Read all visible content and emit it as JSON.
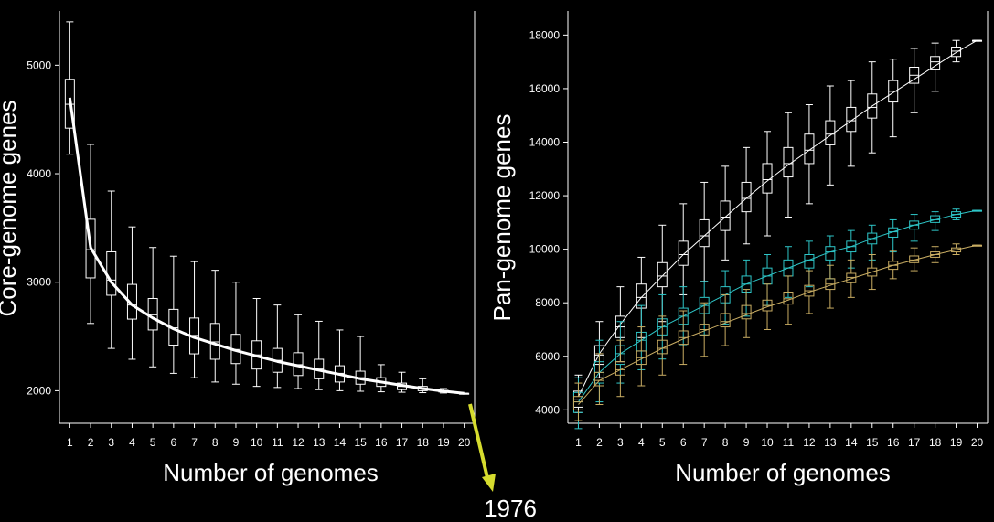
{
  "chart_data": [
    {
      "type": "box",
      "title": "",
      "xlabel": "Number of genomes",
      "ylabel": "Core-genome genes",
      "x": [
        1,
        2,
        3,
        4,
        5,
        6,
        7,
        8,
        9,
        10,
        11,
        12,
        13,
        14,
        15,
        16,
        17,
        18,
        19,
        20
      ],
      "xlim": [
        0.5,
        20.5
      ],
      "ylim": [
        1700,
        5500
      ],
      "yticks": [
        2000,
        3000,
        4000,
        5000
      ],
      "grid": false,
      "series": [
        {
          "color": "#ffffff",
          "boxes": [
            {
              "x": 1,
              "min": 4180,
              "q1": 4420,
              "median": 4640,
              "q3": 4870,
              "max": 5400
            },
            {
              "x": 2,
              "min": 2620,
              "q1": 3040,
              "median": 3300,
              "q3": 3580,
              "max": 4270
            },
            {
              "x": 3,
              "min": 2390,
              "q1": 2880,
              "median": 3020,
              "q3": 3280,
              "max": 3840
            },
            {
              "x": 4,
              "min": 2290,
              "q1": 2660,
              "median": 2790,
              "q3": 2980,
              "max": 3510
            },
            {
              "x": 5,
              "min": 2220,
              "q1": 2560,
              "median": 2700,
              "q3": 2850,
              "max": 3320
            },
            {
              "x": 6,
              "min": 2160,
              "q1": 2420,
              "median": 2580,
              "q3": 2750,
              "max": 3240
            },
            {
              "x": 7,
              "min": 2120,
              "q1": 2340,
              "median": 2510,
              "q3": 2670,
              "max": 3190
            },
            {
              "x": 8,
              "min": 2080,
              "q1": 2290,
              "median": 2450,
              "q3": 2620,
              "max": 3110
            },
            {
              "x": 9,
              "min": 2060,
              "q1": 2250,
              "median": 2380,
              "q3": 2520,
              "max": 3000
            },
            {
              "x": 10,
              "min": 2040,
              "q1": 2200,
              "median": 2330,
              "q3": 2460,
              "max": 2850
            },
            {
              "x": 11,
              "min": 2030,
              "q1": 2170,
              "median": 2280,
              "q3": 2390,
              "max": 2790
            },
            {
              "x": 12,
              "min": 2020,
              "q1": 2140,
              "median": 2240,
              "q3": 2350,
              "max": 2700
            },
            {
              "x": 13,
              "min": 2010,
              "q1": 2110,
              "median": 2200,
              "q3": 2290,
              "max": 2640
            },
            {
              "x": 14,
              "min": 2000,
              "q1": 2080,
              "median": 2160,
              "q3": 2230,
              "max": 2560
            },
            {
              "x": 15,
              "min": 1995,
              "q1": 2060,
              "median": 2120,
              "q3": 2180,
              "max": 2500
            },
            {
              "x": 16,
              "min": 1990,
              "q1": 2040,
              "median": 2080,
              "q3": 2120,
              "max": 2240
            },
            {
              "x": 17,
              "min": 1986,
              "q1": 2010,
              "median": 2040,
              "q3": 2070,
              "max": 2170
            },
            {
              "x": 18,
              "min": 1982,
              "q1": 2000,
              "median": 2020,
              "q3": 2040,
              "max": 2110
            },
            {
              "x": 19,
              "min": 1979,
              "q1": 1988,
              "median": 1995,
              "q3": 2003,
              "max": 2020
            },
            {
              "x": 20,
              "min": 1976,
              "q1": 1976,
              "median": 1976,
              "q3": 1976,
              "max": 1976
            }
          ],
          "fit": [
            4700,
            3320,
            3000,
            2790,
            2670,
            2570,
            2490,
            2430,
            2370,
            2320,
            2270,
            2230,
            2190,
            2150,
            2110,
            2080,
            2050,
            2020,
            1996,
            1976
          ]
        }
      ],
      "annotation": {
        "text": "1976",
        "arrow_color": "#d6dc2e"
      }
    },
    {
      "type": "box",
      "title": "",
      "xlabel": "Number of genomes",
      "ylabel": "Pan-genome genes",
      "x": [
        1,
        2,
        3,
        4,
        5,
        6,
        7,
        8,
        9,
        10,
        11,
        12,
        13,
        14,
        15,
        16,
        17,
        18,
        19,
        20
      ],
      "xlim": [
        0.5,
        20.5
      ],
      "ylim": [
        3500,
        18900
      ],
      "yticks": [
        4000,
        6000,
        8000,
        10000,
        12000,
        14000,
        16000,
        18000
      ],
      "grid": false,
      "series": [
        {
          "color": "#ffffff",
          "boxes": [
            {
              "x": 1,
              "min": 3900,
              "q1": 4100,
              "median": 4400,
              "q3": 4700,
              "max": 5300
            },
            {
              "x": 2,
              "min": 5200,
              "q1": 5700,
              "median": 6050,
              "q3": 6400,
              "max": 7300
            },
            {
              "x": 3,
              "min": 5800,
              "q1": 6700,
              "median": 7100,
              "q3": 7500,
              "max": 8600
            },
            {
              "x": 4,
              "min": 6700,
              "q1": 7800,
              "median": 8200,
              "q3": 8700,
              "max": 9700
            },
            {
              "x": 5,
              "min": 7300,
              "q1": 8600,
              "median": 9000,
              "q3": 9500,
              "max": 10900
            },
            {
              "x": 6,
              "min": 8300,
              "q1": 9400,
              "median": 9800,
              "q3": 10300,
              "max": 11700
            },
            {
              "x": 7,
              "min": 8800,
              "q1": 10100,
              "median": 10500,
              "q3": 11100,
              "max": 12500
            },
            {
              "x": 8,
              "min": 9600,
              "q1": 10700,
              "median": 11200,
              "q3": 11800,
              "max": 13100
            },
            {
              "x": 9,
              "min": 10200,
              "q1": 11400,
              "median": 11900,
              "q3": 12500,
              "max": 13800
            },
            {
              "x": 10,
              "min": 10500,
              "q1": 12100,
              "median": 12600,
              "q3": 13200,
              "max": 14400
            },
            {
              "x": 11,
              "min": 11200,
              "q1": 12700,
              "median": 13200,
              "q3": 13800,
              "max": 15100
            },
            {
              "x": 12,
              "min": 11700,
              "q1": 13200,
              "median": 13700,
              "q3": 14300,
              "max": 15400
            },
            {
              "x": 13,
              "min": 12400,
              "q1": 13900,
              "median": 14300,
              "q3": 14800,
              "max": 16100
            },
            {
              "x": 14,
              "min": 13100,
              "q1": 14400,
              "median": 14800,
              "q3": 15300,
              "max": 16300
            },
            {
              "x": 15,
              "min": 13600,
              "q1": 14900,
              "median": 15300,
              "q3": 15800,
              "max": 17000
            },
            {
              "x": 16,
              "min": 14200,
              "q1": 15500,
              "median": 15900,
              "q3": 16300,
              "max": 17100
            },
            {
              "x": 17,
              "min": 15100,
              "q1": 16200,
              "median": 16500,
              "q3": 16800,
              "max": 17500
            },
            {
              "x": 18,
              "min": 15900,
              "q1": 16700,
              "median": 17000,
              "q3": 17200,
              "max": 17700
            },
            {
              "x": 19,
              "min": 17000,
              "q1": 17200,
              "median": 17400,
              "q3": 17550,
              "max": 17800
            },
            {
              "x": 20,
              "min": 17800,
              "q1": 17800,
              "median": 17800,
              "q3": 17800,
              "max": 17800
            }
          ],
          "fit": [
            4500,
            6100,
            7200,
            8200,
            9000,
            9800,
            10500,
            11200,
            11900,
            12550,
            13150,
            13700,
            14250,
            14800,
            15350,
            15850,
            16350,
            16850,
            17350,
            17800
          ]
        },
        {
          "color": "#2ec6c8",
          "boxes": [
            {
              "x": 1,
              "min": 3300,
              "q1": 3900,
              "median": 4300,
              "q3": 4650,
              "max": 5200
            },
            {
              "x": 2,
              "min": 4300,
              "q1": 5000,
              "median": 5400,
              "q3": 5800,
              "max": 6600
            },
            {
              "x": 3,
              "min": 5000,
              "q1": 5700,
              "median": 6100,
              "q3": 6400,
              "max": 7300
            },
            {
              "x": 4,
              "min": 5500,
              "q1": 6200,
              "median": 6600,
              "q3": 6900,
              "max": 7900
            },
            {
              "x": 5,
              "min": 5900,
              "q1": 6800,
              "median": 7100,
              "q3": 7400,
              "max": 8300
            },
            {
              "x": 6,
              "min": 6400,
              "q1": 7200,
              "median": 7500,
              "q3": 7800,
              "max": 8600
            },
            {
              "x": 7,
              "min": 6800,
              "q1": 7600,
              "median": 7900,
              "q3": 8200,
              "max": 8800
            },
            {
              "x": 8,
              "min": 7200,
              "q1": 8000,
              "median": 8300,
              "q3": 8600,
              "max": 9200
            },
            {
              "x": 9,
              "min": 7500,
              "q1": 8400,
              "median": 8700,
              "q3": 9000,
              "max": 9600
            },
            {
              "x": 10,
              "min": 7900,
              "q1": 8700,
              "median": 9000,
              "q3": 9300,
              "max": 9800
            },
            {
              "x": 11,
              "min": 8200,
              "q1": 9000,
              "median": 9300,
              "q3": 9600,
              "max": 10100
            },
            {
              "x": 12,
              "min": 8600,
              "q1": 9300,
              "median": 9600,
              "q3": 9800,
              "max": 10300
            },
            {
              "x": 13,
              "min": 8900,
              "q1": 9600,
              "median": 9900,
              "q3": 10100,
              "max": 10500
            },
            {
              "x": 14,
              "min": 9300,
              "q1": 9900,
              "median": 10100,
              "q3": 10300,
              "max": 10700
            },
            {
              "x": 15,
              "min": 9600,
              "q1": 10200,
              "median": 10400,
              "q3": 10600,
              "max": 10900
            },
            {
              "x": 16,
              "min": 9900,
              "q1": 10450,
              "median": 10650,
              "q3": 10800,
              "max": 11100
            },
            {
              "x": 17,
              "min": 10300,
              "q1": 10750,
              "median": 10900,
              "q3": 11050,
              "max": 11300
            },
            {
              "x": 18,
              "min": 10700,
              "q1": 11000,
              "median": 11100,
              "q3": 11250,
              "max": 11400
            },
            {
              "x": 19,
              "min": 11100,
              "q1": 11200,
              "median": 11300,
              "q3": 11400,
              "max": 11500
            },
            {
              "x": 20,
              "min": 11450,
              "q1": 11450,
              "median": 11450,
              "q3": 11450,
              "max": 11450
            }
          ],
          "fit": [
            4300,
            5400,
            6100,
            6600,
            7100,
            7500,
            7900,
            8300,
            8700,
            9000,
            9300,
            9600,
            9900,
            10100,
            10400,
            10650,
            10900,
            11100,
            11300,
            11450
          ]
        },
        {
          "color": "#c9ad63",
          "boxes": [
            {
              "x": 1,
              "min": 3600,
              "q1": 4000,
              "median": 4300,
              "q3": 4500,
              "max": 5000
            },
            {
              "x": 2,
              "min": 4200,
              "q1": 4900,
              "median": 5100,
              "q3": 5400,
              "max": 6100
            },
            {
              "x": 3,
              "min": 4500,
              "q1": 5300,
              "median": 5500,
              "q3": 5800,
              "max": 6600
            },
            {
              "x": 4,
              "min": 4900,
              "q1": 5700,
              "median": 5950,
              "q3": 6200,
              "max": 7100
            },
            {
              "x": 5,
              "min": 5300,
              "q1": 6100,
              "median": 6300,
              "q3": 6600,
              "max": 7500
            },
            {
              "x": 6,
              "min": 5700,
              "q1": 6450,
              "median": 6700,
              "q3": 6950,
              "max": 7700
            },
            {
              "x": 7,
              "min": 6000,
              "q1": 6800,
              "median": 7000,
              "q3": 7200,
              "max": 8000
            },
            {
              "x": 8,
              "min": 6400,
              "q1": 7100,
              "median": 7300,
              "q3": 7600,
              "max": 8300
            },
            {
              "x": 9,
              "min": 6700,
              "q1": 7400,
              "median": 7600,
              "q3": 7900,
              "max": 8500
            },
            {
              "x": 10,
              "min": 7000,
              "q1": 7700,
              "median": 7900,
              "q3": 8100,
              "max": 8700
            },
            {
              "x": 11,
              "min": 7200,
              "q1": 7950,
              "median": 8150,
              "q3": 8400,
              "max": 9000
            },
            {
              "x": 12,
              "min": 7600,
              "q1": 8250,
              "median": 8450,
              "q3": 8650,
              "max": 9200
            },
            {
              "x": 13,
              "min": 7800,
              "q1": 8500,
              "median": 8700,
              "q3": 8900,
              "max": 9400
            },
            {
              "x": 14,
              "min": 8200,
              "q1": 8750,
              "median": 8950,
              "q3": 9100,
              "max": 9600
            },
            {
              "x": 15,
              "min": 8500,
              "q1": 9000,
              "median": 9150,
              "q3": 9300,
              "max": 9800
            },
            {
              "x": 16,
              "min": 8900,
              "q1": 9250,
              "median": 9400,
              "q3": 9550,
              "max": 9950
            },
            {
              "x": 17,
              "min": 9200,
              "q1": 9500,
              "median": 9600,
              "q3": 9750,
              "max": 10050
            },
            {
              "x": 18,
              "min": 9500,
              "q1": 9700,
              "median": 9800,
              "q3": 9900,
              "max": 10100
            },
            {
              "x": 19,
              "min": 9800,
              "q1": 9900,
              "median": 9980,
              "q3": 10050,
              "max": 10200
            },
            {
              "x": 20,
              "min": 10150,
              "q1": 10150,
              "median": 10150,
              "q3": 10150,
              "max": 10150
            }
          ],
          "fit": [
            4200,
            5100,
            5500,
            5900,
            6300,
            6650,
            6950,
            7250,
            7550,
            7850,
            8100,
            8400,
            8650,
            8900,
            9150,
            9400,
            9600,
            9800,
            9980,
            10150
          ]
        }
      ]
    }
  ]
}
